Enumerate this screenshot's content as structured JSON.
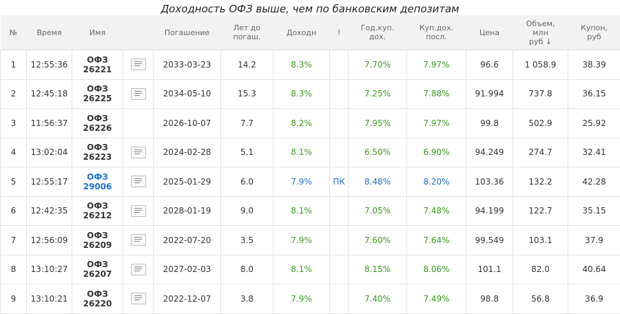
{
  "title": "Доходность ОФЗ выше, чем по банковским депозитам",
  "table": {
    "columns": [
      "№",
      "Время",
      "Имя",
      "Погашение",
      "Лет до\nпогаш.",
      "Доходн",
      "!",
      "Год.куп.\nдох.",
      "Куп.дох.\nпосл.",
      "Цена",
      "Объем,\nмлн\nруб ↓",
      "Купон,\nруб"
    ],
    "rows": [
      {
        "icon": true,
        "accent": "#3a9a1e",
        "name_color": "#333333",
        "cells": [
          "1",
          "12:55:36",
          "ОФЗ\n26221",
          "2033-03-23",
          "14.2",
          "8.3%",
          null,
          "7.70%",
          "7.97%",
          "96.6",
          "1 058.9",
          "38.39"
        ]
      },
      {
        "icon": true,
        "accent": "#3a9a1e",
        "name_color": "#333333",
        "cells": [
          "2",
          "12:45:18",
          "ОФЗ\n26225",
          "2034-05-10",
          "15.3",
          "8.3%",
          null,
          "7.25%",
          "7.88%",
          "91.994",
          "737.8",
          "36.15"
        ]
      },
      {
        "icon": false,
        "accent": "#3a9a1e",
        "name_color": "#333333",
        "cells": [
          "3",
          "11:56:37",
          "ОФЗ\n26226",
          "2026-10-07",
          "7.7",
          "8.2%",
          null,
          "7.95%",
          "7.97%",
          "99.8",
          "502.9",
          "25.92"
        ]
      },
      {
        "icon": true,
        "accent": "#3a9a1e",
        "name_color": "#333333",
        "cells": [
          "4",
          "13:02:04",
          "ОФЗ\n26223",
          "2024-02-28",
          "5.1",
          "8.1%",
          null,
          "6.50%",
          "6.90%",
          "94.249",
          "274.7",
          "32.41"
        ]
      },
      {
        "icon": true,
        "accent": "#1f6fd6",
        "name_color": "#1f6fd6",
        "cells": [
          "5",
          "12:55:17",
          "ОФЗ\n29006",
          "2025-01-29",
          "6.0",
          "7.9%",
          "ПК",
          "8.48%",
          "8.20%",
          "103.36",
          "132.2",
          "42.28"
        ]
      },
      {
        "icon": true,
        "accent": "#3a9a1e",
        "name_color": "#333333",
        "cells": [
          "6",
          "12:42:35",
          "ОФЗ\n26212",
          "2028-01-19",
          "9.0",
          "8.1%",
          null,
          "7.05%",
          "7.48%",
          "94.199",
          "122.7",
          "35.15"
        ]
      },
      {
        "icon": true,
        "accent": "#3a9a1e",
        "name_color": "#333333",
        "cells": [
          "7",
          "12:56:09",
          "ОФЗ\n26209",
          "2022-07-20",
          "3.5",
          "7.9%",
          null,
          "7.60%",
          "7.64%",
          "99.549",
          "103.1",
          "37.9"
        ]
      },
      {
        "icon": true,
        "accent": "#3a9a1e",
        "name_color": "#333333",
        "cells": [
          "8",
          "13:10:27",
          "ОФЗ\n26207",
          "2027-02-03",
          "8.0",
          "8.1%",
          null,
          "8.15%",
          "8.06%",
          "101.1",
          "82.0",
          "40.64"
        ]
      },
      {
        "icon": true,
        "accent": "#3a9a1e",
        "name_color": "#333333",
        "cells": [
          "9",
          "13:10:21",
          "ОФЗ\n26220",
          "2022-12-07",
          "3.8",
          "7.9%",
          null,
          "7.40%",
          "7.49%",
          "98.8",
          "56.8",
          "36.9"
        ]
      }
    ]
  }
}
